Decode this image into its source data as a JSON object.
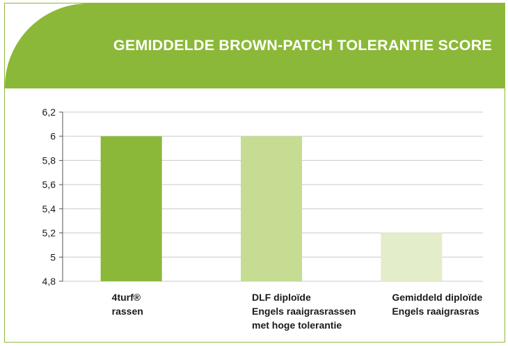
{
  "chart_data": {
    "type": "bar",
    "title": "GEMIDDELDE BROWN-PATCH TOLERANTIE SCORE",
    "categories": [
      [
        "4turf®",
        "rassen"
      ],
      [
        "DLF diploïde",
        "Engels raaigrasrassen",
        "met hoge tolerantie"
      ],
      [
        "Gemiddeld diploïde",
        "Engels raaigrasras"
      ]
    ],
    "values": [
      6.0,
      6.0,
      5.2
    ],
    "bar_colors": [
      "#8bb838",
      "#c5dc92",
      "#e3edca"
    ],
    "ylim": [
      4.8,
      6.2
    ],
    "yticks": [
      "6,2",
      "6",
      "5,8",
      "5,6",
      "5,4",
      "5,2",
      "5",
      "4,8"
    ],
    "ytick_values": [
      6.2,
      6.0,
      5.8,
      5.6,
      5.4,
      5.2,
      5.0,
      4.8
    ],
    "grid": true,
    "xlabel": "",
    "ylabel": ""
  },
  "colors": {
    "header": "#8bb838",
    "grid": "#c9c9c9",
    "axis": "#555555"
  }
}
